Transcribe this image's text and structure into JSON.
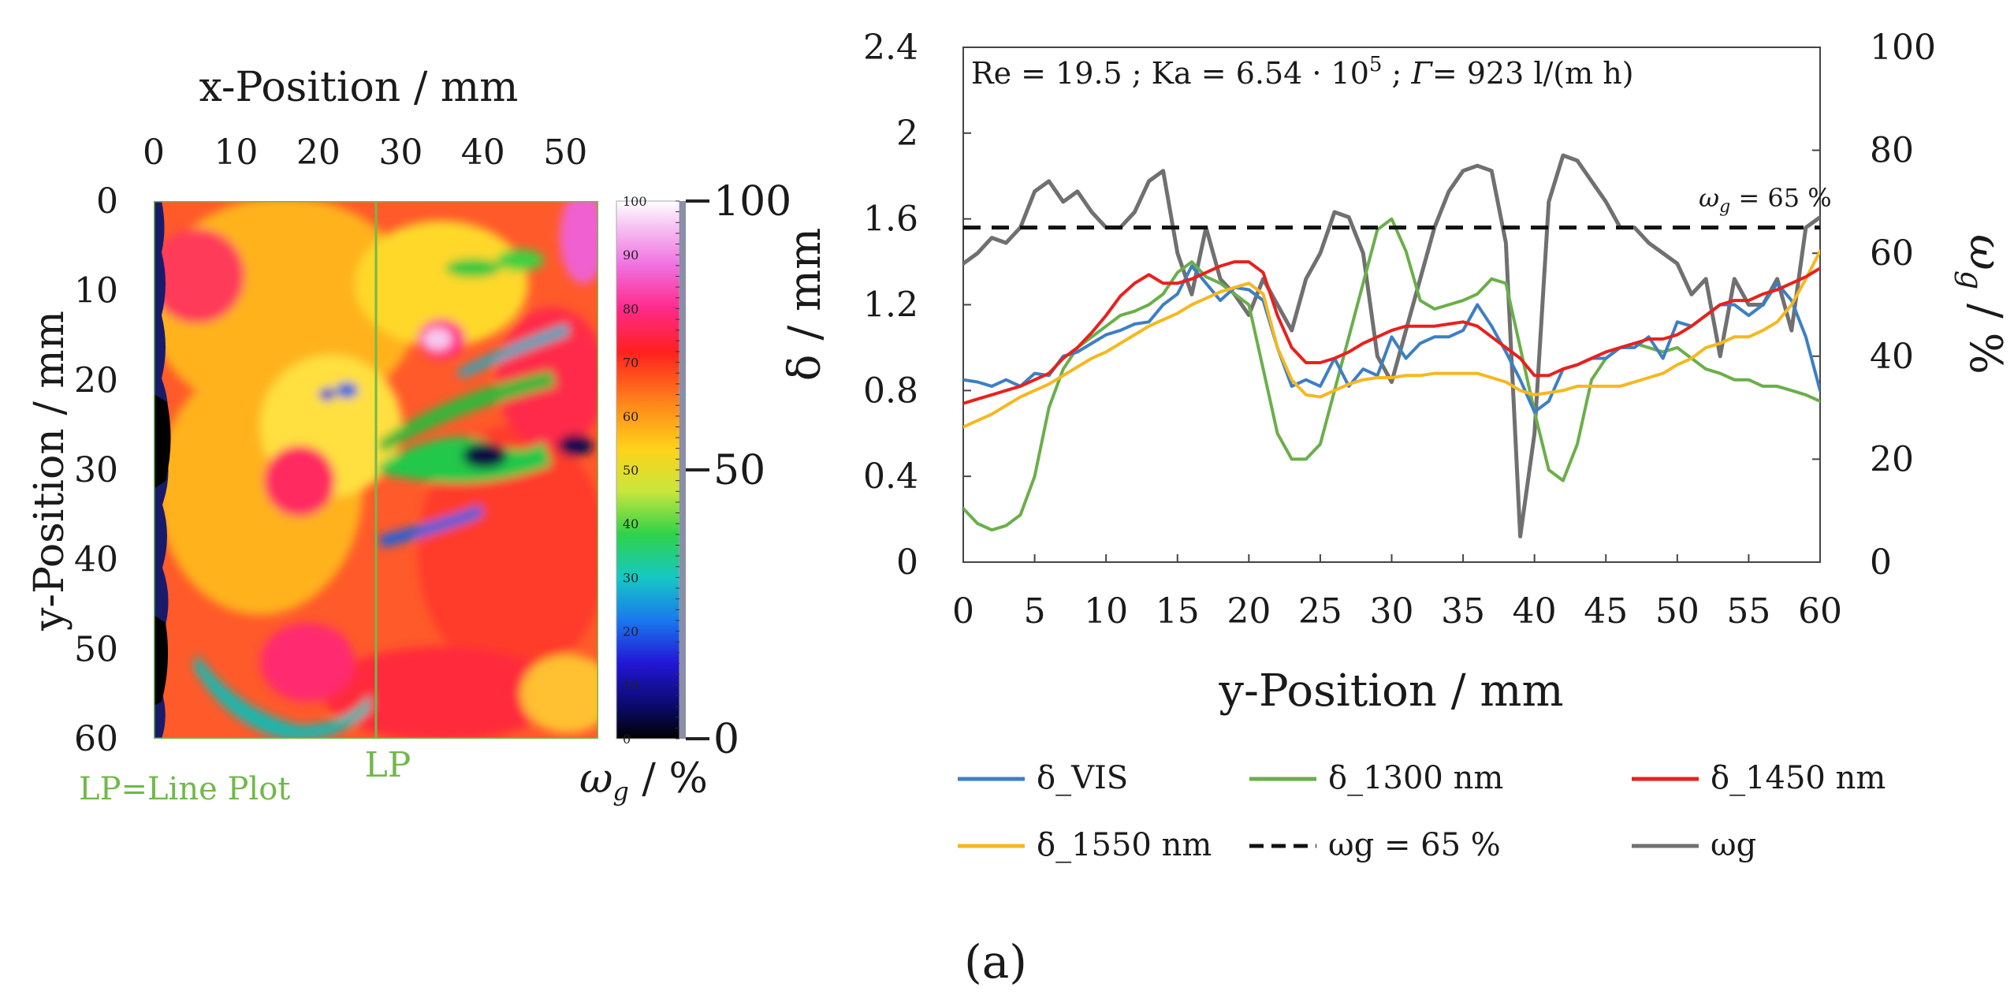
{
  "colors": {
    "vis": "#3d7fc4",
    "nm1300": "#6aaf4a",
    "nm1450": "#e8211d",
    "nm1550": "#f5b820",
    "threshold": "#111111",
    "wg": "#707070",
    "lp_green": "#72b84a"
  },
  "heatmap": {
    "x_axis_title": "x-Position / mm",
    "y_axis_title": "y-Position / mm",
    "x_ticks": [
      "0",
      "10",
      "20",
      "30",
      "40",
      "50"
    ],
    "y_ticks": [
      "0",
      "10",
      "20",
      "30",
      "40",
      "50",
      "60"
    ],
    "lp_label": "LP",
    "lp_note": "LP=Line Plot",
    "lp_x_mm": 27,
    "colorbar_small_ticks": [
      "100",
      "90",
      "80",
      "70",
      "60",
      "50",
      "40",
      "30",
      "20",
      "10",
      "0"
    ],
    "colorbar_big_ticks": [
      "100",
      "50",
      "0"
    ],
    "colorbar_title": "ω",
    "colorbar_title_sub": "g",
    "colorbar_title_unit": " / %"
  },
  "chart_data": {
    "type": "line",
    "annotation": {
      "parts": [
        "Re = 19.5 ; Ka = 6.54 · 10",
        "5",
        " ; ",
        "Γ",
        "= 923 l/(m h)"
      ]
    },
    "threshold_label": [
      "ω",
      "g",
      " = 65 %"
    ],
    "xlabel": "y-Position / mm",
    "ylabel_left": "δ / mm",
    "ylabel_right": [
      "ω",
      "g",
      " / %"
    ],
    "xlim": [
      0,
      60
    ],
    "ylim_left": [
      0,
      2.4
    ],
    "ylim_right": [
      0,
      100
    ],
    "x_ticks": [
      "0",
      "5",
      "10",
      "15",
      "20",
      "25",
      "30",
      "35",
      "40",
      "45",
      "50",
      "55",
      "60"
    ],
    "y_left_ticks": [
      "0",
      "0.4",
      "0.8",
      "1.2",
      "1.6",
      "2",
      "2.4"
    ],
    "y_right_ticks": [
      "0",
      "20",
      "40",
      "60",
      "80",
      "100"
    ],
    "series": [
      {
        "name": "δ_VIS",
        "axis": "left",
        "color_key": "vis",
        "x": [
          0,
          1,
          2,
          3,
          4,
          5,
          6,
          7,
          8,
          9,
          10,
          11,
          12,
          13,
          14,
          15,
          16,
          17,
          18,
          19,
          20,
          21,
          22,
          23,
          24,
          25,
          26,
          27,
          28,
          29,
          30,
          31,
          32,
          33,
          34,
          35,
          36,
          37,
          38,
          39,
          40,
          41,
          42,
          43,
          44,
          45,
          46,
          47,
          48,
          49,
          50,
          51,
          52,
          53,
          54,
          55,
          56,
          57,
          58,
          59,
          60
        ],
        "y": [
          0.85,
          0.84,
          0.82,
          0.85,
          0.82,
          0.88,
          0.87,
          0.96,
          0.98,
          1.02,
          1.06,
          1.08,
          1.11,
          1.12,
          1.2,
          1.25,
          1.38,
          1.3,
          1.22,
          1.28,
          1.27,
          1.22,
          1.0,
          0.82,
          0.85,
          0.82,
          0.95,
          0.82,
          0.9,
          0.87,
          1.05,
          0.95,
          1.02,
          1.05,
          1.05,
          1.08,
          1.2,
          1.1,
          0.98,
          0.85,
          0.7,
          0.75,
          0.9,
          0.92,
          0.95,
          0.95,
          1.0,
          1.0,
          1.05,
          0.95,
          1.12,
          1.1,
          1.15,
          1.2,
          1.2,
          1.15,
          1.2,
          1.3,
          1.22,
          1.05,
          0.8
        ]
      },
      {
        "name": "δ_1300 nm",
        "axis": "left",
        "color_key": "nm1300",
        "x": [
          0,
          1,
          2,
          3,
          4,
          5,
          6,
          7,
          8,
          9,
          10,
          11,
          12,
          13,
          14,
          15,
          16,
          17,
          18,
          19,
          20,
          21,
          22,
          23,
          24,
          25,
          26,
          27,
          28,
          29,
          30,
          31,
          32,
          33,
          34,
          35,
          36,
          37,
          38,
          39,
          40,
          41,
          42,
          43,
          44,
          45,
          46,
          47,
          48,
          49,
          50,
          51,
          52,
          53,
          54,
          55,
          56,
          57,
          58,
          59,
          60
        ],
        "y": [
          0.25,
          0.18,
          0.15,
          0.17,
          0.22,
          0.4,
          0.72,
          0.9,
          1.0,
          1.05,
          1.1,
          1.15,
          1.17,
          1.2,
          1.25,
          1.35,
          1.4,
          1.33,
          1.3,
          1.25,
          1.2,
          0.9,
          0.6,
          0.48,
          0.48,
          0.55,
          0.8,
          1.05,
          1.3,
          1.55,
          1.6,
          1.45,
          1.22,
          1.18,
          1.2,
          1.22,
          1.25,
          1.32,
          1.3,
          1.0,
          0.7,
          0.43,
          0.38,
          0.55,
          0.85,
          0.95,
          1.0,
          1.02,
          1.0,
          0.98,
          1.0,
          0.95,
          0.9,
          0.88,
          0.85,
          0.85,
          0.82,
          0.82,
          0.8,
          0.78,
          0.75
        ]
      },
      {
        "name": "δ_1450 nm",
        "axis": "left",
        "color_key": "nm1450",
        "x": [
          0,
          1,
          2,
          3,
          4,
          5,
          6,
          7,
          8,
          9,
          10,
          11,
          12,
          13,
          14,
          15,
          16,
          17,
          18,
          19,
          20,
          21,
          22,
          23,
          24,
          25,
          26,
          27,
          28,
          29,
          30,
          31,
          32,
          33,
          34,
          35,
          36,
          37,
          38,
          39,
          40,
          41,
          42,
          43,
          44,
          45,
          46,
          47,
          48,
          49,
          50,
          51,
          52,
          53,
          54,
          55,
          56,
          57,
          58,
          59,
          60
        ],
        "y": [
          0.74,
          0.76,
          0.78,
          0.8,
          0.82,
          0.85,
          0.88,
          0.95,
          1.0,
          1.07,
          1.15,
          1.24,
          1.3,
          1.34,
          1.3,
          1.3,
          1.32,
          1.35,
          1.38,
          1.4,
          1.4,
          1.35,
          1.15,
          1.0,
          0.93,
          0.93,
          0.95,
          0.98,
          1.02,
          1.05,
          1.08,
          1.1,
          1.1,
          1.1,
          1.11,
          1.12,
          1.1,
          1.05,
          1.0,
          0.95,
          0.87,
          0.87,
          0.9,
          0.92,
          0.95,
          0.98,
          1.0,
          1.02,
          1.04,
          1.04,
          1.06,
          1.1,
          1.15,
          1.2,
          1.22,
          1.22,
          1.25,
          1.27,
          1.3,
          1.33,
          1.37
        ]
      },
      {
        "name": "δ_1550 nm",
        "axis": "left",
        "color_key": "nm1550",
        "x": [
          0,
          1,
          2,
          3,
          4,
          5,
          6,
          7,
          8,
          9,
          10,
          11,
          12,
          13,
          14,
          15,
          16,
          17,
          18,
          19,
          20,
          21,
          22,
          23,
          24,
          25,
          26,
          27,
          28,
          29,
          30,
          31,
          32,
          33,
          34,
          35,
          36,
          37,
          38,
          39,
          40,
          41,
          42,
          43,
          44,
          45,
          46,
          47,
          48,
          49,
          50,
          51,
          52,
          53,
          54,
          55,
          56,
          57,
          58,
          59,
          60
        ],
        "y": [
          0.63,
          0.66,
          0.69,
          0.73,
          0.77,
          0.8,
          0.83,
          0.87,
          0.91,
          0.95,
          0.98,
          1.02,
          1.06,
          1.1,
          1.13,
          1.16,
          1.2,
          1.23,
          1.26,
          1.28,
          1.3,
          1.25,
          1.0,
          0.85,
          0.78,
          0.77,
          0.8,
          0.83,
          0.85,
          0.86,
          0.86,
          0.87,
          0.87,
          0.88,
          0.88,
          0.88,
          0.88,
          0.86,
          0.84,
          0.8,
          0.78,
          0.79,
          0.8,
          0.82,
          0.82,
          0.82,
          0.82,
          0.84,
          0.86,
          0.88,
          0.92,
          0.95,
          1.0,
          1.02,
          1.05,
          1.05,
          1.08,
          1.12,
          1.2,
          1.32,
          1.45
        ]
      },
      {
        "name": "ωg = 65 %",
        "axis": "right",
        "color_key": "threshold",
        "dashed": true,
        "x": [
          0,
          60
        ],
        "y": [
          65,
          65
        ]
      },
      {
        "name": "ωg",
        "axis": "right",
        "color_key": "wg",
        "x": [
          0,
          1,
          2,
          3,
          4,
          5,
          6,
          7,
          8,
          9,
          10,
          11,
          12,
          13,
          14,
          15,
          16,
          17,
          18,
          19,
          20,
          21,
          22,
          23,
          24,
          25,
          26,
          27,
          28,
          29,
          30,
          31,
          32,
          33,
          34,
          35,
          36,
          37,
          38,
          39,
          40,
          41,
          42,
          43,
          44,
          45,
          46,
          47,
          48,
          49,
          50,
          51,
          52,
          53,
          54,
          55,
          56,
          57,
          58,
          59,
          60
        ],
        "y": [
          58,
          60,
          63,
          62,
          65,
          72,
          74,
          70,
          72,
          68,
          65,
          65,
          68,
          74,
          76,
          60,
          52,
          65,
          55,
          52,
          48,
          55,
          50,
          45,
          55,
          60,
          68,
          67,
          60,
          40,
          35,
          45,
          55,
          65,
          72,
          76,
          77,
          76,
          62,
          5,
          25,
          70,
          79,
          78,
          74,
          70,
          65,
          65,
          62,
          60,
          58,
          52,
          55,
          40,
          55,
          50,
          50,
          55,
          45,
          65,
          67
        ]
      }
    ]
  },
  "legend": [
    {
      "label": "δ_VIS",
      "color_key": "vis",
      "dashed": false
    },
    {
      "label": "δ_1300 nm",
      "color_key": "nm1300",
      "dashed": false
    },
    {
      "label": "δ_1450 nm",
      "color_key": "nm1450",
      "dashed": false
    },
    {
      "label": "δ_1550 nm",
      "color_key": "nm1550",
      "dashed": false
    },
    {
      "label": "ωg = 65 %",
      "color_key": "threshold",
      "dashed": true
    },
    {
      "label": "ωg",
      "color_key": "wg",
      "dashed": false
    }
  ],
  "caption": "(a)"
}
